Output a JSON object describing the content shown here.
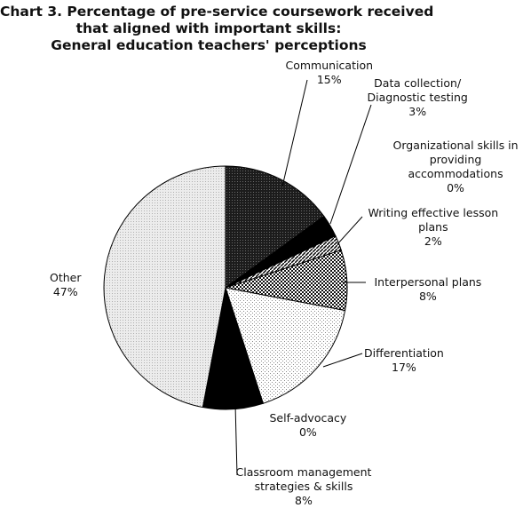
{
  "chart_data": {
    "type": "pie",
    "title_lines": [
      "Chart 3. Percentage of pre-service coursework received",
      "that aligned with important skills:",
      "General education teachers' perceptions"
    ],
    "slices": [
      {
        "label_lines": [
          "Communication"
        ],
        "value_label": "15%",
        "value": 15,
        "pattern": "dark-hatch"
      },
      {
        "label_lines": [
          "Data collection/",
          "Diagnostic testing"
        ],
        "value_label": "3%",
        "value": 3,
        "pattern": "solid-black"
      },
      {
        "label_lines": [
          "Organizational skills in",
          "providing",
          "accommodations"
        ],
        "value_label": "0%",
        "value": 0,
        "pattern": "none"
      },
      {
        "label_lines": [
          "Writing effective lesson",
          "plans"
        ],
        "value_label": "2%",
        "value": 2,
        "pattern": "diagonal-lines"
      },
      {
        "label_lines": [
          "Interpersonal plans"
        ],
        "value_label": "8%",
        "value": 8,
        "pattern": "checker"
      },
      {
        "label_lines": [
          "Differentiation"
        ],
        "value_label": "17%",
        "value": 17,
        "pattern": "light-dots"
      },
      {
        "label_lines": [
          "Self-advocacy"
        ],
        "value_label": "0%",
        "value": 0,
        "pattern": "none"
      },
      {
        "label_lines": [
          "Classroom management",
          "strategies & skills"
        ],
        "value_label": "8%",
        "value": 8,
        "pattern": "solid-black"
      },
      {
        "label_lines": [
          "Other"
        ],
        "value_label": "47%",
        "value": 47,
        "pattern": "light-gray-dots"
      }
    ]
  }
}
